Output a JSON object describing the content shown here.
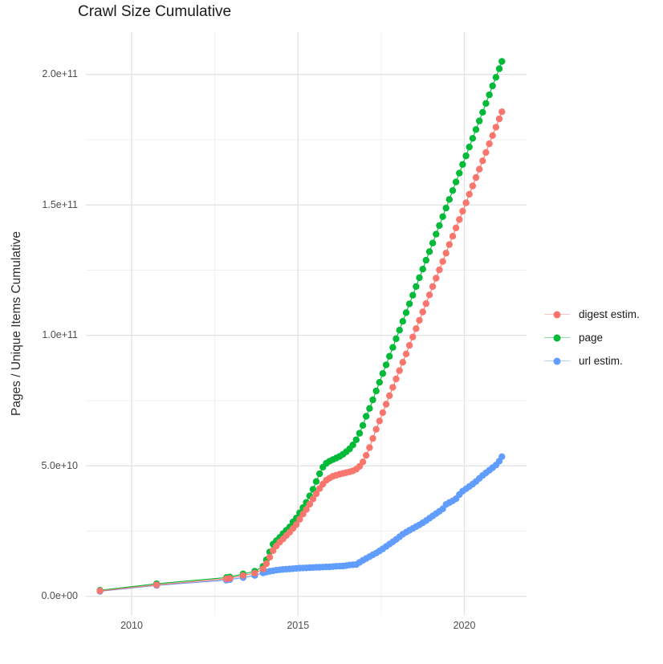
{
  "title": "Crawl Size Cumulative",
  "chart_data": {
    "type": "scatter",
    "title": "Crawl Size Cumulative",
    "xlabel": "",
    "ylabel": "Pages / Unique Items Cumulative",
    "values_unit": "value numbers are pages in units of 1e9 (billions)",
    "grid": true,
    "legend_position": "right",
    "xlim": [
      2008.6,
      2021.9
    ],
    "ylim_e9": [
      0,
      216
    ],
    "x_ticks": [
      {
        "label": "2010",
        "year": 2010
      },
      {
        "label": "2015",
        "year": 2015
      },
      {
        "label": "2020",
        "year": 2020
      }
    ],
    "x_minor_years": [
      2012.5,
      2017.5
    ],
    "y_ticks": [
      {
        "label": "0.0e+00",
        "value_e9": 0
      },
      {
        "label": "5.0e+10",
        "value_e9": 50
      },
      {
        "label": "1.0e+11",
        "value_e9": 100
      },
      {
        "label": "1.5e+11",
        "value_e9": 150
      },
      {
        "label": "2.0e+11",
        "value_e9": 200
      }
    ],
    "y_minor_e9": [
      25,
      75,
      125,
      175
    ],
    "series": [
      {
        "name": "digest estim.",
        "color": "#F8766D",
        "points": [
          [
            2009.05,
            2.1
          ],
          [
            2010.75,
            4.4
          ],
          [
            2012.85,
            6.7
          ],
          [
            2012.95,
            6.9
          ],
          [
            2013.35,
            8
          ],
          [
            2013.7,
            8.9
          ],
          [
            2013.95,
            10.5
          ],
          [
            2014.05,
            12.5
          ],
          [
            2014.15,
            15
          ],
          [
            2014.25,
            17.5
          ],
          [
            2014.35,
            19.3
          ],
          [
            2014.45,
            20.8
          ],
          [
            2014.55,
            22
          ],
          [
            2014.65,
            23.3
          ],
          [
            2014.75,
            24.6
          ],
          [
            2014.85,
            26
          ],
          [
            2014.95,
            27.5
          ],
          [
            2015.05,
            29.5
          ],
          [
            2015.15,
            31.5
          ],
          [
            2015.25,
            33.3
          ],
          [
            2015.35,
            35.3
          ],
          [
            2015.45,
            37.3
          ],
          [
            2015.55,
            39.3
          ],
          [
            2015.65,
            41.3
          ],
          [
            2015.75,
            43
          ],
          [
            2015.85,
            44.5
          ],
          [
            2015.95,
            45.3
          ],
          [
            2016.05,
            46
          ],
          [
            2016.15,
            46.4
          ],
          [
            2016.25,
            46.8
          ],
          [
            2016.35,
            47.1
          ],
          [
            2016.45,
            47.4
          ],
          [
            2016.55,
            47.7
          ],
          [
            2016.65,
            48.1
          ],
          [
            2016.75,
            48.7
          ],
          [
            2016.85,
            49.8
          ],
          [
            2016.95,
            51.5
          ],
          [
            2017.05,
            54
          ],
          [
            2017.15,
            57
          ],
          [
            2017.25,
            60.5
          ],
          [
            2017.35,
            64
          ],
          [
            2017.45,
            67.2
          ],
          [
            2017.55,
            70.4
          ],
          [
            2017.65,
            73.6
          ],
          [
            2017.75,
            76.9
          ],
          [
            2017.85,
            80.1
          ],
          [
            2017.95,
            83.3
          ],
          [
            2018.05,
            86.5
          ],
          [
            2018.15,
            89.7
          ],
          [
            2018.25,
            92.9
          ],
          [
            2018.35,
            96.2
          ],
          [
            2018.45,
            99.4
          ],
          [
            2018.55,
            102.6
          ],
          [
            2018.65,
            105.8
          ],
          [
            2018.75,
            109
          ],
          [
            2018.85,
            112.2
          ],
          [
            2018.95,
            115.5
          ],
          [
            2019.05,
            118.7
          ],
          [
            2019.15,
            121.9
          ],
          [
            2019.25,
            125.1
          ],
          [
            2019.35,
            128.3
          ],
          [
            2019.45,
            131.5
          ],
          [
            2019.55,
            134.8
          ],
          [
            2019.65,
            138
          ],
          [
            2019.75,
            141.2
          ],
          [
            2019.85,
            144.4
          ],
          [
            2019.95,
            147.6
          ],
          [
            2020.05,
            150.8
          ],
          [
            2020.15,
            154.1
          ],
          [
            2020.25,
            157.3
          ],
          [
            2020.35,
            160.5
          ],
          [
            2020.45,
            163.7
          ],
          [
            2020.55,
            166.9
          ],
          [
            2020.65,
            170.1
          ],
          [
            2020.75,
            173.4
          ],
          [
            2020.85,
            176.6
          ],
          [
            2020.95,
            179.8
          ],
          [
            2021.05,
            183
          ],
          [
            2021.13,
            185.7
          ]
        ]
      },
      {
        "name": "page",
        "color": "#00BA38",
        "points": [
          [
            2009.05,
            2.3
          ],
          [
            2010.75,
            4.8
          ],
          [
            2012.85,
            7.2
          ],
          [
            2012.95,
            7.4
          ],
          [
            2013.35,
            8.6
          ],
          [
            2013.7,
            9.6
          ],
          [
            2013.95,
            11.5
          ],
          [
            2014.05,
            14
          ],
          [
            2014.15,
            17
          ],
          [
            2014.25,
            20
          ],
          [
            2014.35,
            21.3
          ],
          [
            2014.45,
            22.6
          ],
          [
            2014.55,
            24
          ],
          [
            2014.65,
            25.3
          ],
          [
            2014.75,
            26.6
          ],
          [
            2014.85,
            28.5
          ],
          [
            2014.95,
            30
          ],
          [
            2015.05,
            32
          ],
          [
            2015.15,
            34
          ],
          [
            2015.25,
            36
          ],
          [
            2015.35,
            38.5
          ],
          [
            2015.45,
            41
          ],
          [
            2015.55,
            44
          ],
          [
            2015.65,
            47
          ],
          [
            2015.75,
            49.5
          ],
          [
            2015.85,
            51
          ],
          [
            2015.95,
            51.8
          ],
          [
            2016.05,
            52.4
          ],
          [
            2016.15,
            53
          ],
          [
            2016.25,
            53.6
          ],
          [
            2016.35,
            54.4
          ],
          [
            2016.45,
            55.4
          ],
          [
            2016.55,
            56.5
          ],
          [
            2016.65,
            58
          ],
          [
            2016.75,
            60
          ],
          [
            2016.85,
            62.5
          ],
          [
            2016.95,
            65.5
          ],
          [
            2017.05,
            69
          ],
          [
            2017.15,
            72
          ],
          [
            2017.25,
            75.3
          ],
          [
            2017.35,
            78.7
          ],
          [
            2017.45,
            82
          ],
          [
            2017.55,
            85.4
          ],
          [
            2017.65,
            88.7
          ],
          [
            2017.75,
            92
          ],
          [
            2017.85,
            95.4
          ],
          [
            2017.95,
            98.7
          ],
          [
            2018.05,
            102
          ],
          [
            2018.15,
            105.4
          ],
          [
            2018.25,
            108.7
          ],
          [
            2018.35,
            112.1
          ],
          [
            2018.45,
            115.4
          ],
          [
            2018.55,
            118.7
          ],
          [
            2018.65,
            122.1
          ],
          [
            2018.75,
            125.4
          ],
          [
            2018.85,
            128.8
          ],
          [
            2018.95,
            132.1
          ],
          [
            2019.05,
            135.4
          ],
          [
            2019.15,
            138.8
          ],
          [
            2019.25,
            142.1
          ],
          [
            2019.35,
            145.5
          ],
          [
            2019.45,
            148.8
          ],
          [
            2019.55,
            152.1
          ],
          [
            2019.65,
            155.5
          ],
          [
            2019.75,
            158.8
          ],
          [
            2019.85,
            162.2
          ],
          [
            2019.95,
            165.5
          ],
          [
            2020.05,
            168.8
          ],
          [
            2020.15,
            172.2
          ],
          [
            2020.25,
            175.5
          ],
          [
            2020.35,
            178.9
          ],
          [
            2020.45,
            182.2
          ],
          [
            2020.55,
            185.5
          ],
          [
            2020.65,
            188.9
          ],
          [
            2020.75,
            192.2
          ],
          [
            2020.85,
            195.6
          ],
          [
            2020.95,
            198.9
          ],
          [
            2021.05,
            202.2
          ],
          [
            2021.13,
            205
          ]
        ]
      },
      {
        "name": "url estim.",
        "color": "#619CFF",
        "points": [
          [
            2009.05,
            1.9
          ],
          [
            2010.75,
            4.2
          ],
          [
            2012.85,
            6.2
          ],
          [
            2012.95,
            6.4
          ],
          [
            2013.35,
            7.2
          ],
          [
            2013.7,
            8
          ],
          [
            2013.95,
            9
          ],
          [
            2014.05,
            9.3
          ],
          [
            2014.15,
            9.6
          ],
          [
            2014.25,
            9.8
          ],
          [
            2014.35,
            10
          ],
          [
            2014.45,
            10.15
          ],
          [
            2014.55,
            10.3
          ],
          [
            2014.65,
            10.4
          ],
          [
            2014.75,
            10.5
          ],
          [
            2014.85,
            10.6
          ],
          [
            2014.95,
            10.7
          ],
          [
            2015.05,
            10.8
          ],
          [
            2015.15,
            10.85
          ],
          [
            2015.25,
            10.9
          ],
          [
            2015.35,
            11
          ],
          [
            2015.45,
            11.05
          ],
          [
            2015.55,
            11.1
          ],
          [
            2015.65,
            11.15
          ],
          [
            2015.75,
            11.2
          ],
          [
            2015.85,
            11.25
          ],
          [
            2015.95,
            11.3
          ],
          [
            2016.05,
            11.4
          ],
          [
            2016.15,
            11.5
          ],
          [
            2016.25,
            11.55
          ],
          [
            2016.35,
            11.6
          ],
          [
            2016.45,
            11.8
          ],
          [
            2016.55,
            12
          ],
          [
            2016.65,
            12.1
          ],
          [
            2016.75,
            12.2
          ],
          [
            2016.85,
            13
          ],
          [
            2016.95,
            13.8
          ],
          [
            2017.05,
            14.5
          ],
          [
            2017.15,
            15.2
          ],
          [
            2017.25,
            15.9
          ],
          [
            2017.35,
            16.6
          ],
          [
            2017.45,
            17.4
          ],
          [
            2017.55,
            18.2
          ],
          [
            2017.65,
            19.1
          ],
          [
            2017.75,
            20
          ],
          [
            2017.85,
            20.9
          ],
          [
            2017.95,
            21.8
          ],
          [
            2018.05,
            22.8
          ],
          [
            2018.15,
            23.8
          ],
          [
            2018.25,
            24.6
          ],
          [
            2018.35,
            25.3
          ],
          [
            2018.45,
            26
          ],
          [
            2018.55,
            26.7
          ],
          [
            2018.65,
            27.4
          ],
          [
            2018.75,
            28.2
          ],
          [
            2018.85,
            29
          ],
          [
            2018.95,
            29.9
          ],
          [
            2019.05,
            30.8
          ],
          [
            2019.15,
            31.7
          ],
          [
            2019.25,
            32.6
          ],
          [
            2019.35,
            33.5
          ],
          [
            2019.45,
            35.2
          ],
          [
            2019.55,
            35.9
          ],
          [
            2019.65,
            36.6
          ],
          [
            2019.75,
            37.4
          ],
          [
            2019.85,
            39
          ],
          [
            2019.95,
            40.3
          ],
          [
            2020.05,
            41.2
          ],
          [
            2020.15,
            42.1
          ],
          [
            2020.25,
            43
          ],
          [
            2020.35,
            44
          ],
          [
            2020.45,
            45.2
          ],
          [
            2020.55,
            46.3
          ],
          [
            2020.65,
            47.3
          ],
          [
            2020.75,
            48.3
          ],
          [
            2020.85,
            49.3
          ],
          [
            2020.95,
            50.3
          ],
          [
            2021.05,
            51.8
          ],
          [
            2021.13,
            53.5
          ]
        ]
      }
    ],
    "colors": {
      "digest_estim": "#F8766D",
      "page": "#00BA38",
      "url_estim": "#619CFF",
      "grid_major": "#e3e3e3",
      "grid_minor": "#f0f0f0",
      "tick_label": "#4d4d4d"
    }
  }
}
